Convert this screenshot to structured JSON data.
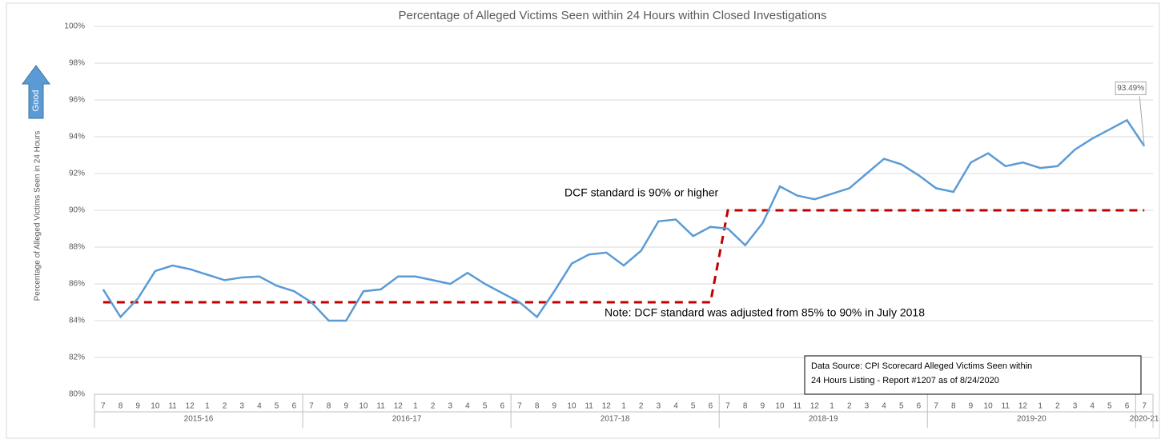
{
  "chart_data": {
    "type": "line",
    "title": "Percentage of Alleged Victims Seen within 24 Hours within Closed Investigations",
    "y_label": "Percentage of Alleged Victims Seen in 24 Hours",
    "arrow_label": "Good",
    "categories": [
      "7",
      "8",
      "9",
      "10",
      "11",
      "12",
      "1",
      "2",
      "3",
      "4",
      "5",
      "6",
      "7",
      "8",
      "9",
      "10",
      "11",
      "12",
      "1",
      "2",
      "3",
      "4",
      "5",
      "6",
      "7",
      "8",
      "9",
      "10",
      "11",
      "12",
      "1",
      "2",
      "3",
      "4",
      "5",
      "6",
      "7",
      "8",
      "9",
      "10",
      "11",
      "12",
      "1",
      "2",
      "3",
      "4",
      "5",
      "6",
      "7",
      "8",
      "9",
      "10",
      "11",
      "12",
      "1",
      "2",
      "3",
      "4",
      "5",
      "6",
      "7"
    ],
    "groups": [
      "2015-16",
      "2016-17",
      "2017-18",
      "2018-19",
      "2019-20",
      "2020-21"
    ],
    "series": [
      {
        "color": "#5b9bd5",
        "values": [
          85.7,
          84.2,
          85.2,
          86.7,
          87.0,
          86.8,
          86.5,
          86.2,
          86.35,
          86.4,
          85.9,
          85.6,
          85.0,
          84.0,
          84.0,
          85.6,
          85.7,
          86.4,
          86.4,
          86.2,
          86.0,
          86.6,
          86.0,
          85.5,
          85.0,
          84.2,
          85.6,
          87.1,
          87.6,
          87.7,
          87.0,
          87.8,
          89.4,
          89.5,
          88.6,
          89.1,
          89.0,
          88.1,
          89.3,
          91.3,
          90.8,
          90.6,
          90.9,
          91.2,
          92.0,
          92.8,
          92.5,
          91.9,
          91.2,
          91.0,
          92.6,
          93.1,
          92.4,
          92.6,
          92.3,
          92.4,
          93.3,
          93.9,
          94.4,
          94.9,
          93.49
        ],
        "value_labels": {
          "60": "93.49%"
        }
      },
      {
        "color": "#c00000",
        "dashed": true,
        "values": [
          85,
          85,
          85,
          85,
          85,
          85,
          85,
          85,
          85,
          85,
          85,
          85,
          85,
          85,
          85,
          85,
          85,
          85,
          85,
          85,
          85,
          85,
          85,
          85,
          85,
          85,
          85,
          85,
          85,
          85,
          85,
          85,
          85,
          85,
          85,
          85,
          90,
          90,
          90,
          90,
          90,
          90,
          90,
          90,
          90,
          90,
          90,
          90,
          90,
          90,
          90,
          90,
          90,
          90,
          90,
          90,
          90,
          90,
          90,
          90,
          90
        ]
      }
    ],
    "ylim": [
      80,
      100
    ],
    "yticks": [
      {
        "value": 80,
        "label": "80%"
      },
      {
        "value": 82,
        "label": "82%"
      },
      {
        "value": 84,
        "label": "84%"
      },
      {
        "value": 86,
        "label": "86%"
      },
      {
        "value": 88,
        "label": "88%"
      },
      {
        "value": 90,
        "label": "90%"
      },
      {
        "value": 92,
        "label": "92%"
      },
      {
        "value": 94,
        "label": "94%"
      },
      {
        "value": 96,
        "label": "96%"
      },
      {
        "value": 98,
        "label": "98%"
      },
      {
        "value": 100,
        "label": "100%"
      }
    ],
    "grid": true,
    "annotations": [
      "DCF standard is 90% or higher",
      "Note: DCF standard was adjusted from 85% to 90% in July 2018"
    ],
    "source": [
      "Data Source: CPI Scorecard Alleged Victims Seen within",
      "24 Hours Listing - Report #1207  as of 8/24/2020"
    ]
  }
}
